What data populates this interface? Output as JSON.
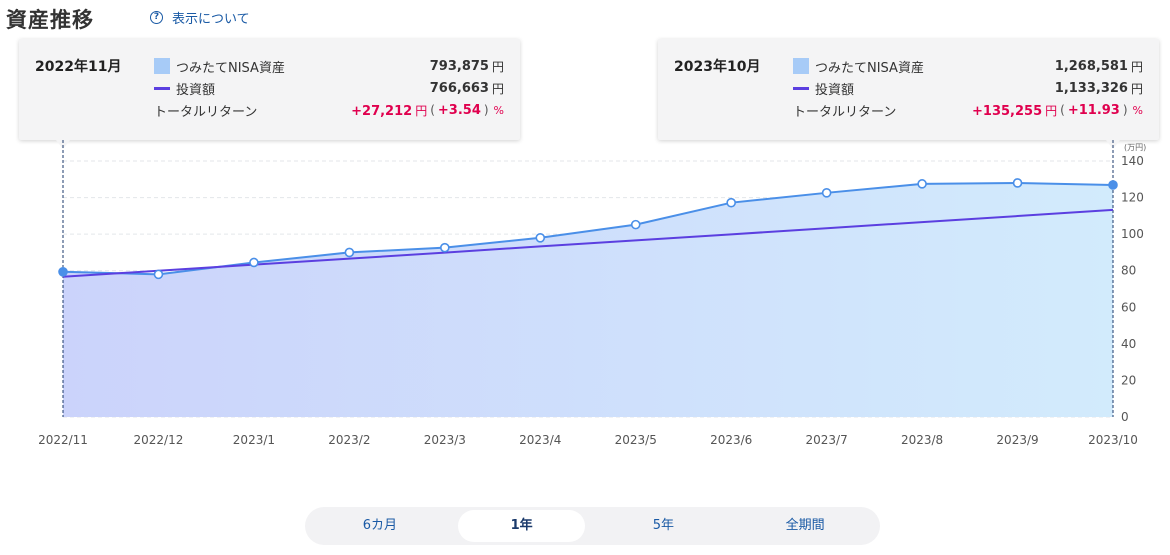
{
  "page": {
    "title": "資産推移",
    "help_label": "表示について",
    "help_icon": "question-circle-icon"
  },
  "tooltip_left": {
    "date": "2022年11月",
    "asset_label": "つみたてNISA資産",
    "asset_value": "793,875",
    "invest_label": "投資額",
    "invest_value": "766,663",
    "return_label": "トータルリターン",
    "return_value": "+27,212",
    "return_pct": "+3.54",
    "unit": "円",
    "pct_unit": "%",
    "paren_open": "(",
    "paren_close": ")"
  },
  "tooltip_right": {
    "date": "2023年10月",
    "asset_label": "つみたてNISA資産",
    "asset_value": "1,268,581",
    "invest_label": "投資額",
    "invest_value": "1,133,326",
    "return_label": "トータルリターン",
    "return_value": "+135,255",
    "return_pct": "+11.93",
    "unit": "円",
    "pct_unit": "%",
    "paren_open": "(",
    "paren_close": ")"
  },
  "periods": {
    "p6m": "6カ月",
    "p1y": "1年",
    "p5y": "5年",
    "pall": "全期間",
    "active": "1年"
  },
  "colors": {
    "asset_line": "#4a8fe8",
    "asset_fill": "#a7cbf7",
    "invest_line": "#5b3fe0",
    "return_positive": "#e0004e",
    "link": "#1a5aa5"
  },
  "chart_data": {
    "type": "area",
    "x": [
      "2022/11",
      "2022/12",
      "2023/1",
      "2023/2",
      "2023/3",
      "2023/4",
      "2023/5",
      "2023/6",
      "2023/7",
      "2023/8",
      "2023/9",
      "2023/10"
    ],
    "series": [
      {
        "name": "つみたてNISA資産",
        "type": "area",
        "values": [
          79.4,
          78.0,
          84.5,
          90.0,
          92.6,
          98.0,
          105.2,
          117.2,
          122.6,
          127.5,
          128.0,
          126.9
        ]
      },
      {
        "name": "投資額",
        "type": "line",
        "values": [
          76.7,
          80.0,
          83.3,
          86.6,
          89.9,
          93.3,
          96.6,
          99.9,
          103.2,
          106.6,
          109.9,
          113.3
        ]
      }
    ],
    "unit_label": "(万円)",
    "ylim": [
      0,
      140
    ],
    "yticks": [
      0,
      20,
      40,
      60,
      80,
      100,
      120,
      140
    ],
    "grid": true,
    "y_axis_side": "right"
  }
}
